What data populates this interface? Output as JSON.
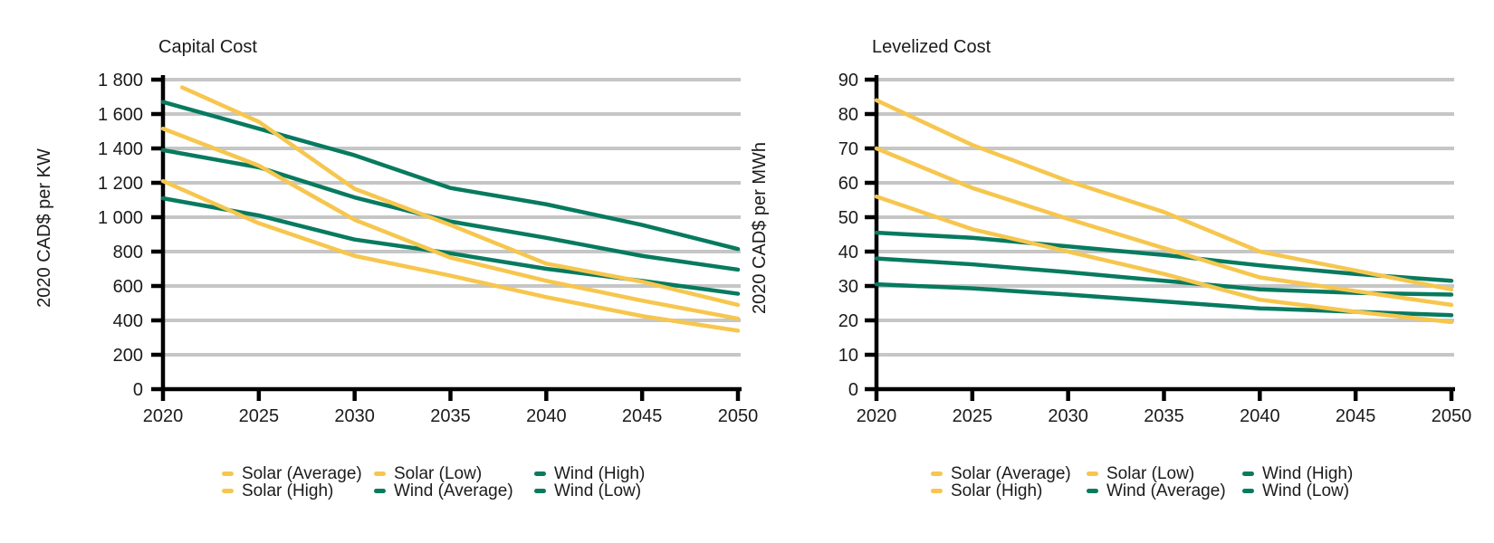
{
  "colors": {
    "solar": "#F6C64E",
    "wind": "#077A5F",
    "grid": "#C6C6C6",
    "axis": "#000000",
    "text": "#1B1B1B",
    "title": "#262626",
    "background": "#FFFFFF"
  },
  "chart_data": [
    {
      "type": "line",
      "title": "Capital Cost",
      "xlabel": "",
      "ylabel": "2020 CAD$ per KW",
      "ylim": [
        0,
        1800
      ],
      "y_tick_step": 200,
      "y_tick_labels": [
        "0",
        "200",
        "400",
        "600",
        "800",
        "1 000",
        "1 200",
        "1 400",
        "1 600",
        "1 800"
      ],
      "x_ticks": [
        "2020",
        "2025",
        "2030",
        "2035",
        "2040",
        "2045",
        "2050"
      ],
      "xlim": [
        2020,
        2050
      ],
      "grid": "horizontal",
      "legend_position": "bottom",
      "series": [
        {
          "name": "Wind (High)",
          "group": "wind",
          "x": [
            2020,
            2025,
            2030,
            2035,
            2040,
            2045,
            2050
          ],
          "values": [
            1670,
            1515,
            1360,
            1170,
            1075,
            955,
            815
          ]
        },
        {
          "name": "Wind (Average)",
          "group": "wind",
          "x": [
            2020,
            2025,
            2030,
            2035,
            2040,
            2045,
            2050
          ],
          "values": [
            1390,
            1290,
            1115,
            975,
            880,
            775,
            695
          ]
        },
        {
          "name": "Wind (Low)",
          "group": "wind",
          "x": [
            2020,
            2025,
            2030,
            2035,
            2040,
            2045,
            2050
          ],
          "values": [
            1110,
            1010,
            870,
            790,
            700,
            630,
            555
          ]
        },
        {
          "name": "Solar (High)",
          "group": "solar",
          "x": [
            2021,
            2025,
            2030,
            2035,
            2040,
            2045,
            2050
          ],
          "values": [
            1755,
            1555,
            1165,
            955,
            730,
            625,
            490
          ]
        },
        {
          "name": "Solar (Average)",
          "group": "solar",
          "x": [
            2020,
            2025,
            2030,
            2035,
            2040,
            2045,
            2050
          ],
          "values": [
            1515,
            1300,
            985,
            765,
            630,
            515,
            410
          ]
        },
        {
          "name": "Solar (Low)",
          "group": "solar",
          "x": [
            2020,
            2025,
            2030,
            2035,
            2040,
            2045,
            2050
          ],
          "values": [
            1210,
            965,
            775,
            660,
            535,
            425,
            340
          ]
        }
      ]
    },
    {
      "type": "line",
      "title": "Levelized Cost",
      "xlabel": "",
      "ylabel": "2020 CAD$ per MWh",
      "ylim": [
        0,
        90
      ],
      "y_tick_step": 10,
      "y_tick_labels": [
        "0",
        "10",
        "20",
        "30",
        "40",
        "50",
        "60",
        "70",
        "80",
        "90"
      ],
      "x_ticks": [
        "2020",
        "2025",
        "2030",
        "2035",
        "2040",
        "2045",
        "2050"
      ],
      "xlim": [
        2020,
        2050
      ],
      "grid": "horizontal",
      "legend_position": "bottom",
      "series": [
        {
          "name": "Wind (High)",
          "group": "wind",
          "x": [
            2020,
            2025,
            2030,
            2035,
            2040,
            2045,
            2050
          ],
          "values": [
            45.5,
            44,
            41.5,
            39,
            36,
            33.5,
            31.5
          ]
        },
        {
          "name": "Wind (Average)",
          "group": "wind",
          "x": [
            2020,
            2025,
            2030,
            2035,
            2040,
            2045,
            2050
          ],
          "values": [
            38,
            36.3,
            34,
            31.5,
            29,
            28,
            27.5
          ]
        },
        {
          "name": "Wind (Low)",
          "group": "wind",
          "x": [
            2020,
            2025,
            2030,
            2035,
            2040,
            2045,
            2050
          ],
          "values": [
            30.5,
            29.3,
            27.5,
            25.5,
            23.5,
            22.5,
            21.5
          ]
        },
        {
          "name": "Solar (High)",
          "group": "solar",
          "x": [
            2020,
            2025,
            2030,
            2035,
            2040,
            2045,
            2050
          ],
          "values": [
            84,
            71,
            60.5,
            51.5,
            40,
            34.5,
            29
          ]
        },
        {
          "name": "Solar (Average)",
          "group": "solar",
          "x": [
            2020,
            2025,
            2030,
            2035,
            2040,
            2045,
            2050
          ],
          "values": [
            70,
            58.5,
            49.5,
            41,
            32.5,
            28.5,
            24.5
          ]
        },
        {
          "name": "Solar (Low)",
          "group": "solar",
          "x": [
            2020,
            2025,
            2030,
            2035,
            2040,
            2045,
            2050
          ],
          "values": [
            56,
            46.5,
            40,
            33.5,
            26,
            22.5,
            19.5
          ]
        }
      ]
    }
  ],
  "legend": {
    "rows": [
      [
        {
          "label": "Solar (Average)",
          "group": "solar"
        },
        {
          "label": "Solar (Low)",
          "group": "solar"
        },
        {
          "label": "Wind (High)",
          "group": "wind"
        }
      ],
      [
        {
          "label": "Solar (High)",
          "group": "solar"
        },
        {
          "label": "Wind (Average)",
          "group": "wind"
        },
        {
          "label": "Wind (Low)",
          "group": "wind"
        }
      ]
    ]
  }
}
